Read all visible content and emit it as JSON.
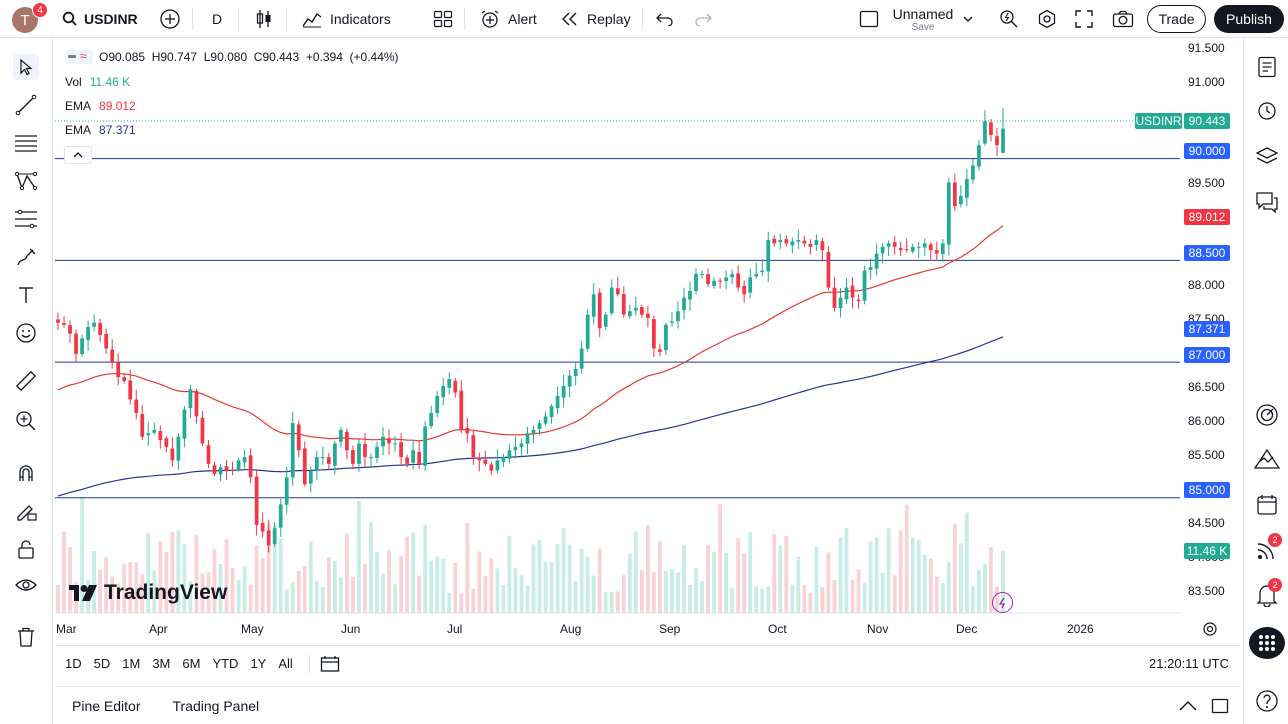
{
  "topbar": {
    "avatar_letter": "T",
    "avatar_badge": "4",
    "symbol": "USDINR",
    "interval": "D",
    "indicators_label": "Indicators",
    "alert_label": "Alert",
    "replay_label": "Replay",
    "layout_name": "Unnamed",
    "layout_save": "Save",
    "trade_label": "Trade",
    "publish_label": "Publish"
  },
  "legend": {
    "ohlc": "O90.085  H90.747  L90.080  C90.443  +0.394  (+0.44%)",
    "vol_label": "Vol",
    "vol_value": "11.46 K",
    "ema1_label": "EMA",
    "ema1_value": "89.012",
    "ema2_label": "EMA",
    "ema2_value": "87.371"
  },
  "price_axis": {
    "ticks": [
      "91.500",
      "91.000",
      "89.500",
      "88.000",
      "87.500",
      "86.500",
      "86.000",
      "85.500",
      "84.500",
      "84.000",
      "83.500"
    ],
    "labels": [
      {
        "text": "USDINR",
        "color": "#22ab94"
      },
      {
        "text": "90.443",
        "color": "#22ab94"
      },
      {
        "text": "90.000",
        "color": "#2962ff"
      },
      {
        "text": "89.012",
        "color": "#f23645"
      },
      {
        "text": "88.500",
        "color": "#2962ff"
      },
      {
        "text": "87.371",
        "color": "#2962ff"
      },
      {
        "text": "87.000",
        "color": "#2962ff"
      },
      {
        "text": "85.000",
        "color": "#2962ff"
      },
      {
        "text": "11.46 K",
        "color": "#22ab94"
      }
    ]
  },
  "time_axis": {
    "ticks": [
      "Mar",
      "Apr",
      "May",
      "Jun",
      "Jul",
      "Aug",
      "Sep",
      "Oct",
      "Nov",
      "Dec",
      "2026"
    ]
  },
  "watermark": "TradingView",
  "bottombar": {
    "ranges": [
      "1D",
      "5D",
      "1M",
      "3M",
      "6M",
      "YTD",
      "1Y",
      "All"
    ],
    "clock": "21:20:11 UTC"
  },
  "panelbar": {
    "pine_editor": "Pine Editor",
    "trading_panel": "Trading Panel"
  },
  "rightbar": {
    "badge_ideas": "2",
    "badge_notifications": "2"
  },
  "colors": {
    "up": "#22ab94",
    "down": "#f23645",
    "ema_fast": "#e53935",
    "ema_slow": "#283593",
    "hline": "#1e3a8a"
  },
  "chart_data": {
    "type": "candlestick",
    "symbol": "USDINR",
    "interval": "D",
    "ylim": [
      83.3,
      91.75
    ],
    "horizontal_lines": [
      90.0,
      88.5,
      87.0,
      85.0
    ],
    "ohlc_last": {
      "open": 90.085,
      "high": 90.747,
      "low": 90.08,
      "close": 90.443,
      "change": 0.394,
      "change_pct": 0.44
    },
    "closes": [
      87.58,
      87.55,
      87.42,
      87.12,
      87.35,
      87.52,
      87.58,
      87.4,
      87.2,
      87.0,
      86.78,
      86.72,
      86.45,
      86.25,
      85.9,
      85.95,
      86.0,
      85.85,
      85.75,
      85.55,
      85.9,
      86.3,
      86.6,
      86.2,
      85.8,
      85.5,
      85.35,
      85.45,
      85.4,
      85.4,
      85.55,
      85.6,
      85.3,
      84.6,
      84.5,
      84.3,
      84.55,
      84.9,
      85.3,
      86.1,
      85.7,
      85.2,
      85.4,
      85.6,
      85.6,
      85.5,
      85.8,
      86.0,
      85.7,
      85.5,
      85.8,
      85.6,
      85.6,
      85.75,
      85.9,
      85.8,
      85.8,
      85.6,
      85.5,
      85.7,
      85.5,
      86.05,
      86.25,
      86.5,
      86.65,
      86.75,
      86.55,
      86.0,
      85.95,
      85.6,
      85.55,
      85.5,
      85.4,
      85.55,
      85.6,
      85.7,
      85.75,
      85.8,
      85.95,
      86.0,
      86.1,
      86.2,
      86.35,
      86.5,
      86.65,
      86.8,
      86.9,
      87.2,
      87.7,
      88.0,
      87.5,
      87.7,
      88.1,
      88.0,
      87.7,
      87.75,
      87.8,
      87.7,
      87.65,
      87.2,
      87.15,
      87.55,
      87.6,
      87.75,
      87.95,
      88.05,
      88.3,
      88.3,
      88.15,
      88.2,
      88.2,
      88.25,
      88.3,
      88.1,
      88.0,
      88.25,
      88.3,
      88.35,
      88.8,
      88.75,
      88.8,
      88.75,
      88.78,
      88.8,
      88.75,
      88.7,
      88.8,
      88.65,
      88.1,
      87.8,
      87.95,
      88.1,
      87.95,
      87.9,
      88.35,
      88.4,
      88.6,
      88.7,
      88.75,
      88.7,
      88.65,
      88.65,
      88.7,
      88.7,
      88.75,
      88.65,
      88.6,
      88.75,
      89.65,
      89.3,
      89.45,
      89.7,
      89.9,
      90.2,
      90.55,
      90.35,
      90.2,
      90.443
    ],
    "ema_fast": {
      "label": "EMA",
      "last": 89.012
    },
    "ema_slow": {
      "label": "EMA",
      "last": 87.371
    },
    "volume_last": "11.46 K"
  }
}
